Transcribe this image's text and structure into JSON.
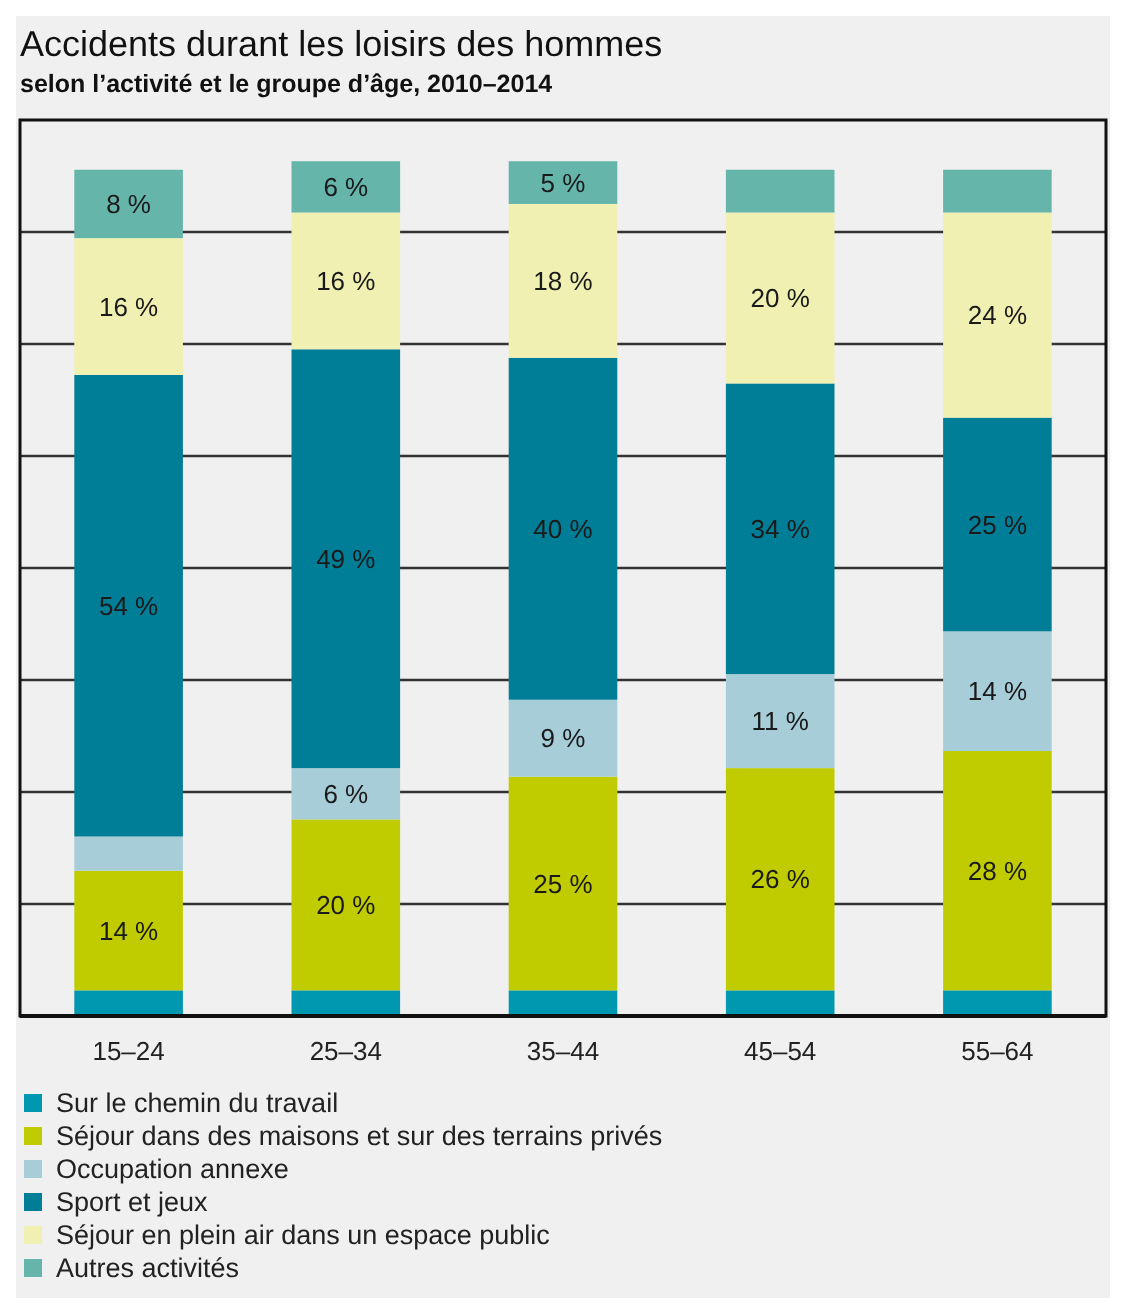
{
  "chart_data": {
    "type": "bar",
    "title": "Accidents durant les loisirs des hommes",
    "subtitle": "selon l’activité et le groupe d’âge, 2010–2014",
    "categories": [
      "15–24",
      "25–34",
      "35–44",
      "45–54",
      "55–64"
    ],
    "stacked": true,
    "grid": "y",
    "legend": "bottom",
    "series": [
      {
        "name": "Sur le chemin du travail",
        "color": "#0098b0",
        "values": [
          3,
          3,
          3,
          3,
          3
        ],
        "value_labels": [
          null,
          null,
          null,
          null,
          null
        ]
      },
      {
        "name": "Séjour dans des maisons et sur des terrains privés",
        "color": "#c0cc00",
        "values": [
          14,
          20,
          25,
          26,
          28
        ],
        "value_labels": [
          "14 %",
          "20 %",
          "25 %",
          "26 %",
          "28 %"
        ]
      },
      {
        "name": "Occupation annexe",
        "color": "#a7cdd9",
        "values": [
          4,
          6,
          9,
          11,
          14
        ],
        "value_labels": [
          null,
          "6 %",
          "9 %",
          "11 %",
          "14 %"
        ]
      },
      {
        "name": "Sport et jeux",
        "color": "#007e97",
        "values": [
          54,
          49,
          40,
          34,
          25
        ],
        "value_labels": [
          "54 %",
          "49 %",
          "40 %",
          "34 %",
          "25 %"
        ]
      },
      {
        "name": "Séjour en plein air dans un espace public",
        "color": "#eff0b2",
        "values": [
          16,
          16,
          18,
          20,
          24
        ],
        "value_labels": [
          "16 %",
          "16 %",
          "18 %",
          "20 %",
          "24 %"
        ]
      },
      {
        "name": "Autres activités",
        "color": "#66b5ab",
        "values": [
          8,
          6,
          5,
          5,
          5
        ],
        "value_labels": [
          "8 %",
          "6 %",
          "5 %",
          null,
          null
        ]
      }
    ]
  }
}
